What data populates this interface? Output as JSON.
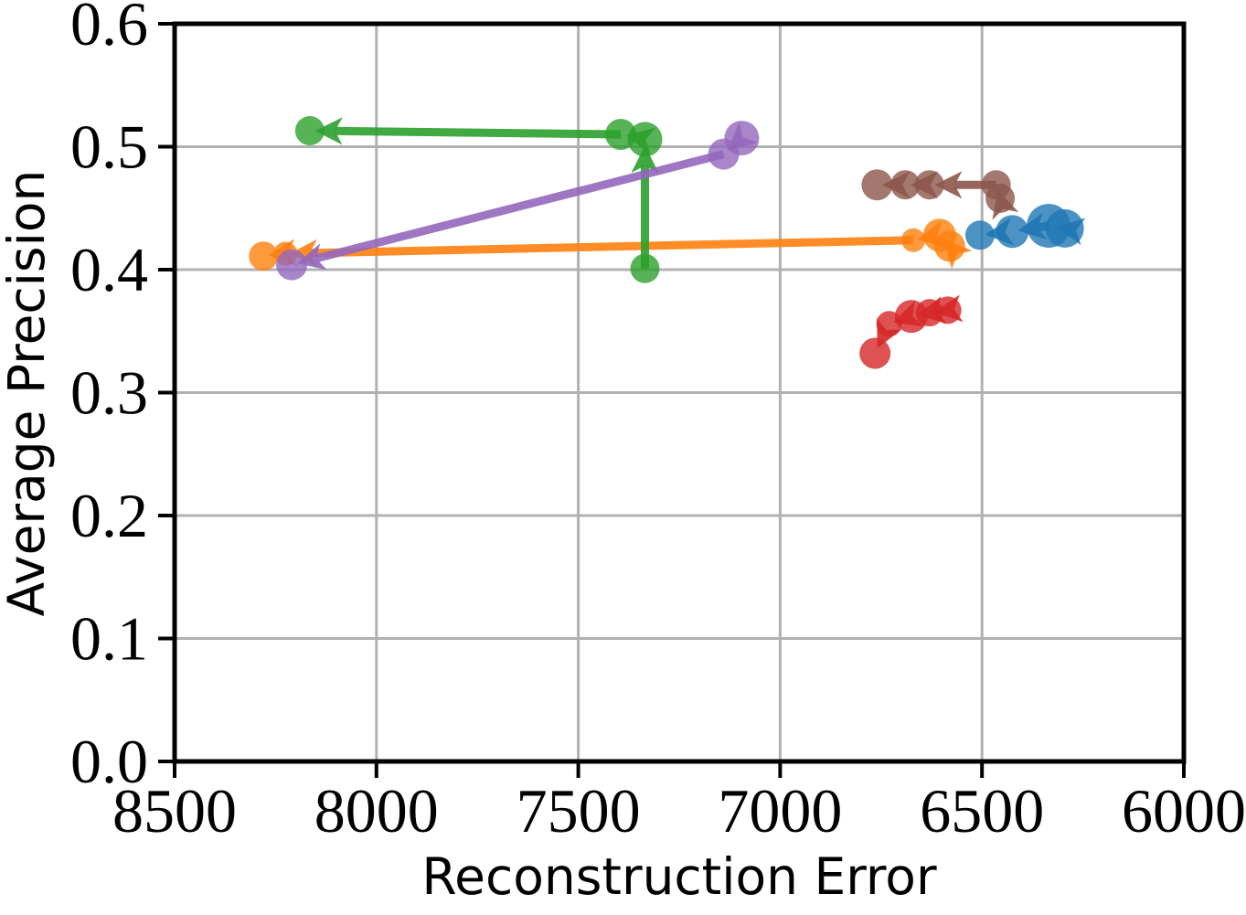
{
  "chart_data": {
    "type": "scatter",
    "title": "",
    "xlabel": "Reconstruction Error",
    "ylabel": "Average Precision",
    "xlim": [
      8500,
      6000
    ],
    "ylim": [
      0.0,
      0.6
    ],
    "x_axis_inverted": true,
    "grid": true,
    "legend": null,
    "background_color": "#ffffff",
    "grid_color": "#b1b1b1",
    "xticks": {
      "values": [
        8500,
        8000,
        7500,
        7000,
        6500,
        6000
      ],
      "labels": [
        "8500",
        "8000",
        "7500",
        "7000",
        "6500",
        "6000"
      ]
    },
    "yticks": {
      "values": [
        0.0,
        0.1,
        0.2,
        0.3,
        0.4,
        0.5,
        0.6
      ],
      "labels": [
        "0.0",
        "0.1",
        "0.2",
        "0.3",
        "0.4",
        "0.5",
        "0.6"
      ]
    },
    "series_note": "Each series is an ordered trajectory; consecutive points are joined by thick arrows pointing from earlier to later point (generally toward higher reconstruction error, i.e. leftward on the inverted x axis). Marker radius r is in screen px.",
    "series": [
      {
        "name": "blue",
        "color": "#1f77b4",
        "points": [
          {
            "x": 6295,
            "y": 0.4335,
            "r": 21
          },
          {
            "x": 6335,
            "y": 0.4357,
            "r": 24
          },
          {
            "x": 6425,
            "y": 0.431,
            "r": 18
          },
          {
            "x": 6505,
            "y": 0.428,
            "r": 16
          }
        ]
      },
      {
        "name": "orange",
        "color": "#ff7f0e",
        "points": [
          {
            "x": 6580,
            "y": 0.419,
            "r": 17
          },
          {
            "x": 6605,
            "y": 0.428,
            "r": 18
          },
          {
            "x": 6670,
            "y": 0.424,
            "r": 13
          },
          {
            "x": 8225,
            "y": 0.413,
            "r": 13
          },
          {
            "x": 8280,
            "y": 0.411,
            "r": 16
          }
        ]
      },
      {
        "name": "green",
        "color": "#2ca02c",
        "points": [
          {
            "x": 7335,
            "y": 0.401,
            "r": 16
          },
          {
            "x": 7335,
            "y": 0.506,
            "r": 19
          },
          {
            "x": 7395,
            "y": 0.51,
            "r": 17
          },
          {
            "x": 8165,
            "y": 0.513,
            "r": 16
          }
        ]
      },
      {
        "name": "red",
        "color": "#d62728",
        "points": [
          {
            "x": 6585,
            "y": 0.367,
            "r": 15
          },
          {
            "x": 6630,
            "y": 0.365,
            "r": 15
          },
          {
            "x": 6675,
            "y": 0.362,
            "r": 18
          },
          {
            "x": 6730,
            "y": 0.356,
            "r": 14
          },
          {
            "x": 6765,
            "y": 0.332,
            "r": 17
          }
        ]
      },
      {
        "name": "purple",
        "color": "#9467bd",
        "points": [
          {
            "x": 7095,
            "y": 0.507,
            "r": 19
          },
          {
            "x": 7140,
            "y": 0.494,
            "r": 17
          },
          {
            "x": 8210,
            "y": 0.404,
            "r": 17
          }
        ]
      },
      {
        "name": "brown",
        "color": "#8c564b",
        "points": [
          {
            "x": 6455,
            "y": 0.458,
            "r": 16
          },
          {
            "x": 6465,
            "y": 0.469,
            "r": 16
          },
          {
            "x": 6630,
            "y": 0.469,
            "r": 16
          },
          {
            "x": 6690,
            "y": 0.469,
            "r": 16
          },
          {
            "x": 6760,
            "y": 0.469,
            "r": 17
          }
        ]
      }
    ]
  }
}
